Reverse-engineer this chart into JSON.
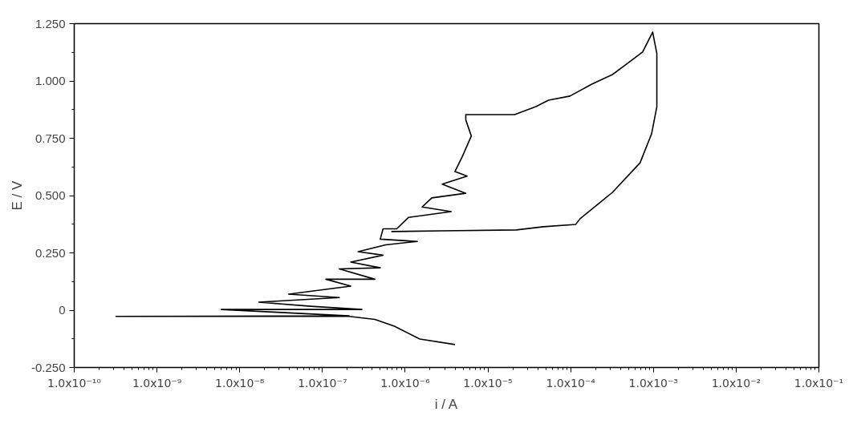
{
  "chart_data": {
    "type": "line",
    "xlabel": "i / A",
    "ylabel": "E / V",
    "log": "x",
    "grid": false,
    "marker": "none",
    "line_style": "solid",
    "xlim": [
      1e-10,
      0.1
    ],
    "xticks": [
      {
        "value": 1e-10,
        "label": "1.0x10⁻¹⁰"
      },
      {
        "value": 1e-09,
        "label": "1.0x10⁻⁹"
      },
      {
        "value": 1e-08,
        "label": "1.0x10⁻⁸"
      },
      {
        "value": 1e-07,
        "label": "1.0x10⁻⁷"
      },
      {
        "value": 1e-06,
        "label": "1.0x10⁻⁶"
      },
      {
        "value": 1e-05,
        "label": "1.0x10⁻⁵"
      },
      {
        "value": 0.0001,
        "label": "1.0x10⁻⁴"
      },
      {
        "value": 0.001,
        "label": "1.0x10⁻³"
      },
      {
        "value": 0.01,
        "label": "1.0x10⁻²"
      },
      {
        "value": 0.1,
        "label": "1.0x10⁻¹"
      }
    ],
    "ylim": [
      -0.25,
      1.25
    ],
    "yticks": [
      {
        "value": -0.25,
        "label": "-0.250"
      },
      0,
      {
        "value": 0.25,
        "label": "0.250"
      },
      {
        "value": 0.5,
        "label": "0.500"
      },
      {
        "value": 0.75,
        "label": "0.750"
      },
      {
        "value": 1.0,
        "label": "1.000"
      },
      {
        "value": 1.25,
        "label": "1.250"
      }
    ],
    "series": [
      {
        "color": "#000000",
        "x": [
          4e-06,
          1.5e-06,
          7.4e-07,
          4.3e-07,
          2.1e-07,
          3.2e-10,
          2.1e-07,
          6e-09,
          3e-07,
          7.2e-08,
          1.7e-08,
          1.6e-07,
          3.9e-08,
          2.2e-07,
          1.1e-07,
          4.3e-07,
          1.6e-07,
          5e-07,
          2.2e-07,
          5.4e-07,
          2.7e-07,
          5.8e-07,
          1.4e-06,
          5e-07,
          5.4e-07,
          7.9e-07,
          1.1e-06,
          3.6e-06,
          1.6e-06,
          2.1e-06,
          5.4e-06,
          2.8e-06,
          5.6e-06,
          4e-06,
          4.9e-06,
          6.3e-06,
          5.4e-06,
          5.4e-06,
          2.1e-05,
          3.8e-05,
          5.4e-05,
          9.8e-05,
          0.00018,
          0.00032,
          0.0005,
          0.00074,
          0.00098,
          0.0011,
          0.0011,
          0.00095,
          0.00069,
          0.00032,
          0.00013,
          0.000115,
          4.7e-05,
          2.2e-05,
          2.8e-06,
          6.8e-07
        ],
        "values": [
          -0.15,
          -0.126,
          -0.07,
          -0.04,
          -0.027,
          -0.027,
          -0.025,
          0.003,
          0.003,
          0.017,
          0.035,
          0.055,
          0.07,
          0.105,
          0.135,
          0.135,
          0.18,
          0.185,
          0.21,
          0.24,
          0.255,
          0.285,
          0.3,
          0.31,
          0.355,
          0.355,
          0.405,
          0.43,
          0.45,
          0.49,
          0.51,
          0.55,
          0.585,
          0.605,
          0.67,
          0.76,
          0.83,
          0.853,
          0.853,
          0.888,
          0.916,
          0.934,
          0.986,
          1.028,
          1.08,
          1.126,
          1.213,
          1.119,
          0.888,
          0.769,
          0.643,
          0.514,
          0.399,
          0.374,
          0.364,
          0.35,
          0.346,
          0.343
        ]
      }
    ]
  }
}
